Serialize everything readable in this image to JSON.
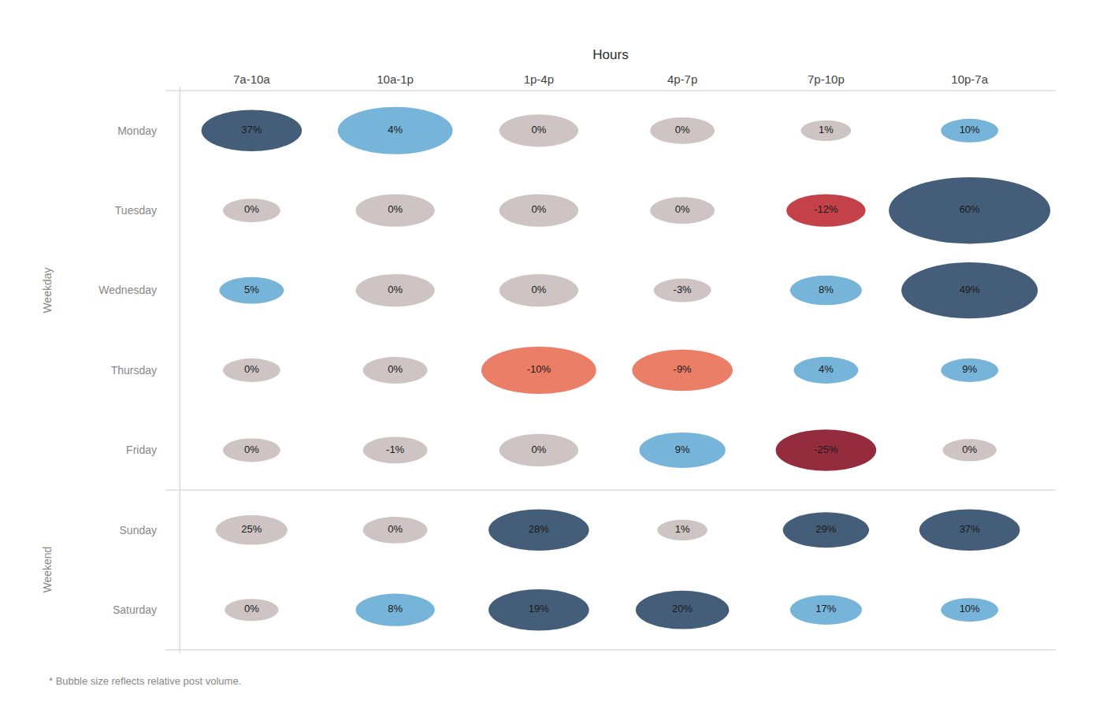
{
  "chart_data": {
    "type": "bubble",
    "x_label": "Hours",
    "categories": [
      "7a-10a",
      "10a-1p",
      "1p-4p",
      "4p-7p",
      "7p-10p",
      "10p-7a"
    ],
    "rows": [
      "Monday",
      "Tuesday",
      "Wednesday",
      "Thursday",
      "Friday",
      "Sunday",
      "Saturday"
    ],
    "row_groups": [
      {
        "label": "Weekday",
        "rows": [
          "Monday",
          "Tuesday",
          "Wednesday",
          "Thursday",
          "Friday"
        ]
      },
      {
        "label": "Weekend",
        "rows": [
          "Sunday",
          "Saturday"
        ]
      }
    ],
    "values": [
      [
        37,
        4,
        0,
        0,
        1,
        10
      ],
      [
        0,
        0,
        0,
        0,
        -12,
        60
      ],
      [
        5,
        0,
        0,
        -3,
        8,
        49
      ],
      [
        0,
        0,
        -10,
        -9,
        4,
        9
      ],
      [
        0,
        -1,
        0,
        9,
        -25,
        0
      ],
      [
        25,
        0,
        28,
        1,
        29,
        37
      ],
      [
        0,
        8,
        19,
        20,
        17,
        10
      ]
    ],
    "value_labels": [
      [
        "37%",
        "4%",
        "0%",
        "0%",
        "1%",
        "10%"
      ],
      [
        "0%",
        "0%",
        "0%",
        "0%",
        "-12%",
        "60%"
      ],
      [
        "5%",
        "0%",
        "0%",
        "-3%",
        "8%",
        "49%"
      ],
      [
        "0%",
        "0%",
        "-10%",
        "-9%",
        "4%",
        "9%"
      ],
      [
        "0%",
        "-1%",
        "0%",
        "9%",
        "-25%",
        "0%"
      ],
      [
        "25%",
        "0%",
        "28%",
        "1%",
        "29%",
        "37%"
      ],
      [
        "0%",
        "8%",
        "19%",
        "20%",
        "17%",
        "10%"
      ]
    ],
    "sizes": [
      [
        0.28,
        0.32,
        0.22,
        0.18,
        0.14,
        0.16
      ],
      [
        0.16,
        0.22,
        0.22,
        0.18,
        0.22,
        0.45
      ],
      [
        0.18,
        0.22,
        0.22,
        0.16,
        0.2,
        0.38
      ],
      [
        0.16,
        0.18,
        0.32,
        0.28,
        0.18,
        0.16
      ],
      [
        0.16,
        0.18,
        0.22,
        0.24,
        0.28,
        0.15
      ],
      [
        0.2,
        0.18,
        0.28,
        0.14,
        0.24,
        0.28
      ],
      [
        0.15,
        0.22,
        0.28,
        0.26,
        0.2,
        0.16
      ]
    ],
    "colors": [
      [
        "#34506e",
        "#6baed6",
        "#c9bfbe",
        "#c9bfbe",
        "#c9bfbe",
        "#6baed6"
      ],
      [
        "#c9bfbe",
        "#c9bfbe",
        "#c9bfbe",
        "#c9bfbe",
        "#c0313a",
        "#34506e"
      ],
      [
        "#6baed6",
        "#c9bfbe",
        "#c9bfbe",
        "#c9bfbe",
        "#6baed6",
        "#34506e"
      ],
      [
        "#c9bfbe",
        "#c9bfbe",
        "#e8735a",
        "#e8735a",
        "#6baed6",
        "#6baed6"
      ],
      [
        "#c9bfbe",
        "#c9bfbe",
        "#c9bfbe",
        "#6baed6",
        "#8b1a2e",
        "#c9bfbe"
      ],
      [
        "#c9bfbe",
        "#c9bfbe",
        "#34506e",
        "#c9bfbe",
        "#34506e",
        "#34506e"
      ],
      [
        "#c9bfbe",
        "#6baed6",
        "#34506e",
        "#34506e",
        "#6baed6",
        "#6baed6"
      ]
    ],
    "data_labels": true,
    "grid": false,
    "footnote": "* Bubble size reflects relative post volume."
  }
}
